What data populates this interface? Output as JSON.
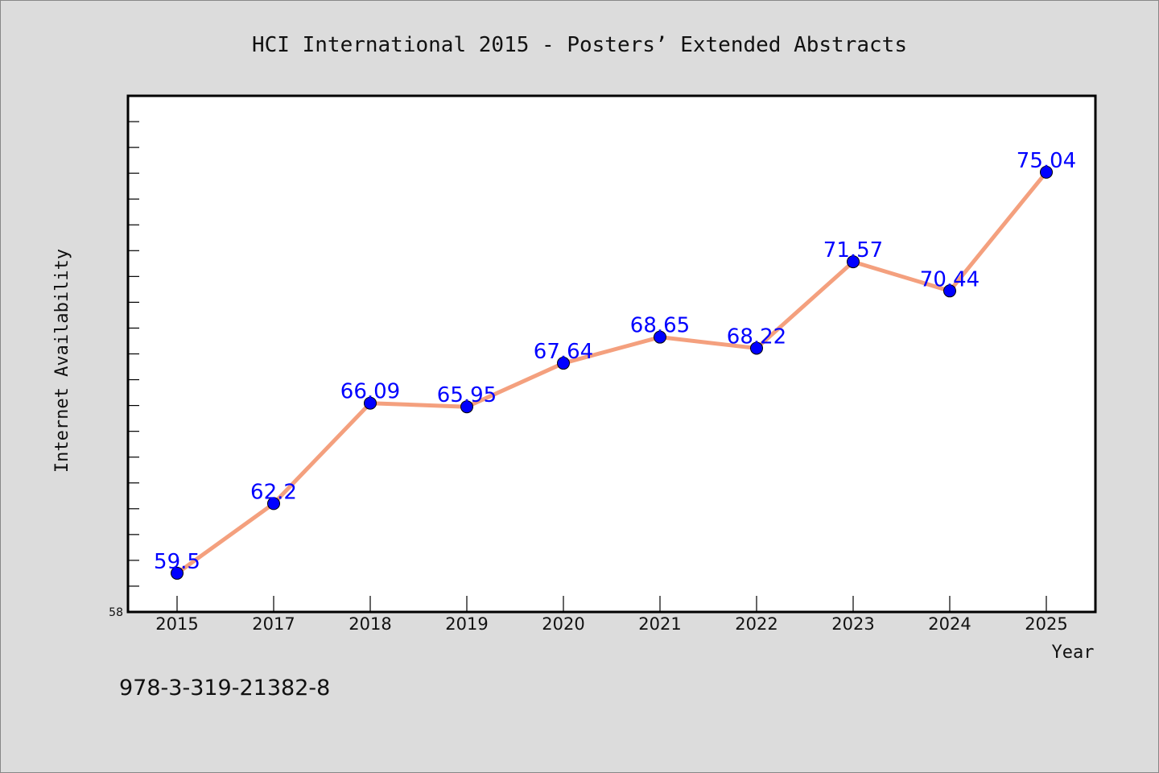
{
  "chart_data": {
    "type": "line",
    "title": "HCI International 2015 - Posters’  Extended Abstracts",
    "xlabel": "Year",
    "ylabel": "Internet Availability",
    "categories": [
      "2015",
      "2017",
      "2018",
      "2019",
      "2020",
      "2021",
      "2022",
      "2023",
      "2024",
      "2025"
    ],
    "series": [
      {
        "values": [
          59.5,
          62.2,
          66.09,
          65.95,
          67.64,
          68.65,
          68.22,
          71.57,
          70.44,
          75.04
        ],
        "data_labels": [
          "59.5",
          "62.2",
          "66.09",
          "65.95",
          "67.64",
          "68.65",
          "68.22",
          "71.57",
          "70.44",
          "75.04"
        ]
      }
    ],
    "y_tick_labels": [
      "58"
    ],
    "ylim": [
      58,
      78
    ],
    "grid": false,
    "legend": "none",
    "colors": {
      "line": "#f4a07e",
      "marker": "#0000ff",
      "label": "#0000ff",
      "background": "#dcdcdc",
      "plot_background": "#ffffff"
    }
  },
  "footer": {
    "isbn": "978-3-319-21382-8"
  }
}
